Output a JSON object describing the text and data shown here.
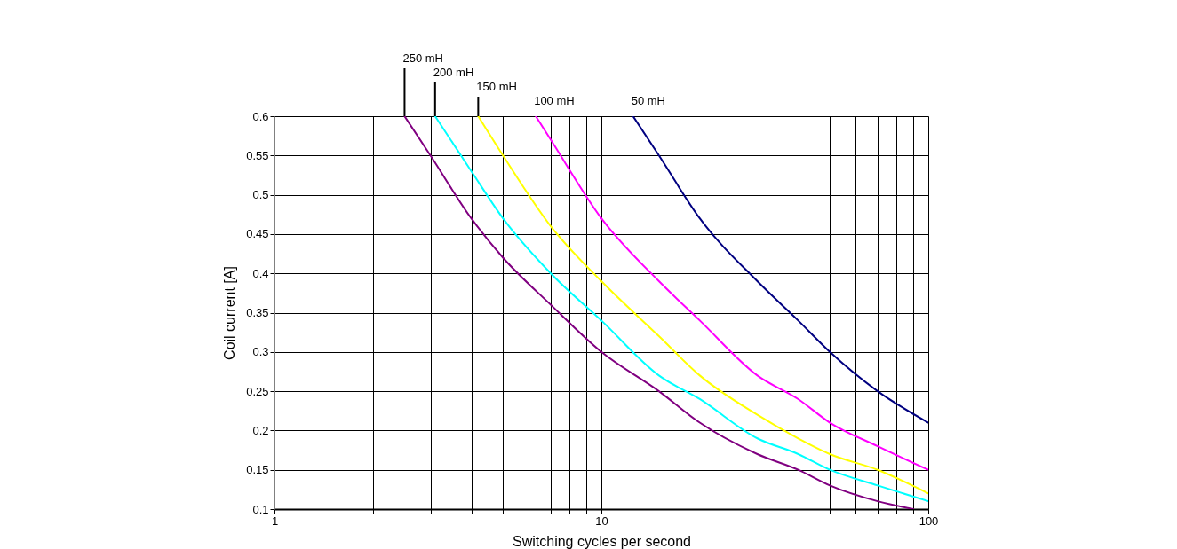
{
  "chart_data": {
    "type": "line",
    "xlabel": "Switching cycles per second",
    "ylabel": "Coil current [A]",
    "log": "x",
    "grid": true,
    "legend": false,
    "marker": "none",
    "line_style": "solid",
    "xlim": [
      1,
      100
    ],
    "ylim": [
      0.1,
      0.6
    ],
    "xticks": [
      1,
      {
        "value": 2,
        "label": null
      },
      {
        "value": 3,
        "label": null
      },
      {
        "value": 4,
        "label": null
      },
      {
        "value": 5,
        "label": null
      },
      {
        "value": 6,
        "label": null
      },
      {
        "value": 7,
        "label": null
      },
      {
        "value": 8,
        "label": null
      },
      {
        "value": 9,
        "label": null
      },
      10,
      {
        "value": 40,
        "label": null
      },
      {
        "value": 50,
        "label": null
      },
      {
        "value": 60,
        "label": null
      },
      {
        "value": 70,
        "label": null
      },
      {
        "value": 80,
        "label": null
      },
      {
        "value": 90,
        "label": null
      },
      100
    ],
    "yticks": [
      0.1,
      0.15,
      0.2,
      0.25,
      0.3,
      0.35,
      0.4,
      0.45,
      0.5,
      0.55,
      0.6
    ],
    "series": [
      {
        "name": "250 mH",
        "color": "#800080",
        "x": [
          2.5,
          3,
          4,
          5,
          7,
          10,
          15,
          20,
          30,
          40,
          50,
          70,
          90
        ],
        "values": [
          0.6,
          0.55,
          0.47,
          0.42,
          0.36,
          0.3,
          0.25,
          0.21,
          0.17,
          0.15,
          0.13,
          0.11,
          0.1
        ]
      },
      {
        "name": "200 mH",
        "color": "#00ffff",
        "x": [
          3.1,
          4,
          5,
          7,
          10,
          15,
          20,
          30,
          40,
          50,
          70,
          100
        ],
        "values": [
          0.6,
          0.53,
          0.47,
          0.4,
          0.34,
          0.27,
          0.24,
          0.19,
          0.17,
          0.15,
          0.13,
          0.11
        ]
      },
      {
        "name": "150 mH",
        "color": "#ffff00",
        "x": [
          4.2,
          5,
          7,
          10,
          15,
          20,
          30,
          40,
          50,
          70,
          100
        ],
        "values": [
          0.6,
          0.55,
          0.46,
          0.39,
          0.32,
          0.27,
          0.22,
          0.19,
          0.17,
          0.15,
          0.12
        ]
      },
      {
        "name": "100 mH",
        "color": "#ff00ff",
        "x": [
          6.3,
          7,
          10,
          15,
          20,
          30,
          40,
          50,
          70,
          100
        ],
        "values": [
          0.6,
          0.57,
          0.47,
          0.39,
          0.34,
          0.27,
          0.24,
          0.21,
          0.18,
          0.15
        ]
      },
      {
        "name": "50 mH",
        "color": "#000080",
        "x": [
          12.5,
          15,
          20,
          30,
          40,
          50,
          70,
          100
        ],
        "values": [
          0.6,
          0.55,
          0.47,
          0.39,
          0.34,
          0.3,
          0.25,
          0.21
        ]
      }
    ]
  }
}
